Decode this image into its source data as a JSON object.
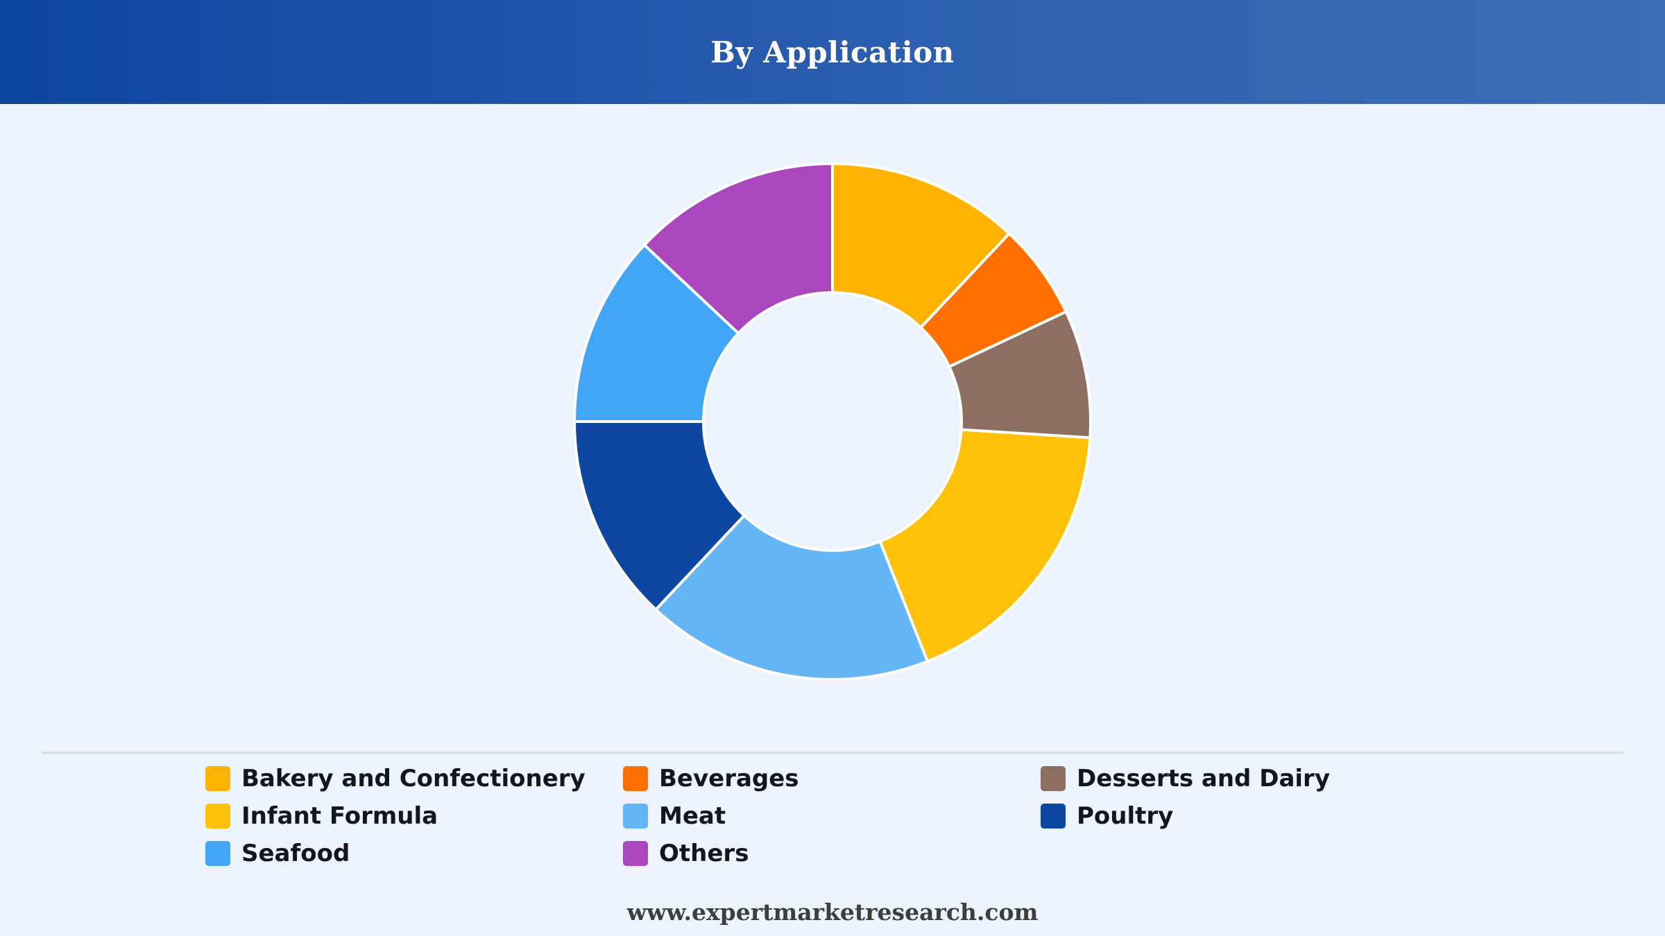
{
  "header": {
    "title": "By Application"
  },
  "footer": {
    "text": "www.expertmarketresearch.com"
  },
  "chart_data": {
    "type": "pie",
    "donut": true,
    "title": "By Application",
    "legend_position": "bottom",
    "categories": [
      "Bakery and Confectionery",
      "Beverages",
      "Desserts and Dairy",
      "Infant Formula",
      "Meat",
      "Poultry",
      "Seafood",
      "Others"
    ],
    "values": [
      12,
      6,
      8,
      18,
      18,
      13,
      12,
      13
    ],
    "colors": [
      "#ffb300",
      "#ff7000",
      "#8d6e63",
      "#ffc107",
      "#64b5f6",
      "#0d47a1",
      "#42a5f5",
      "#ab47bc"
    ]
  }
}
